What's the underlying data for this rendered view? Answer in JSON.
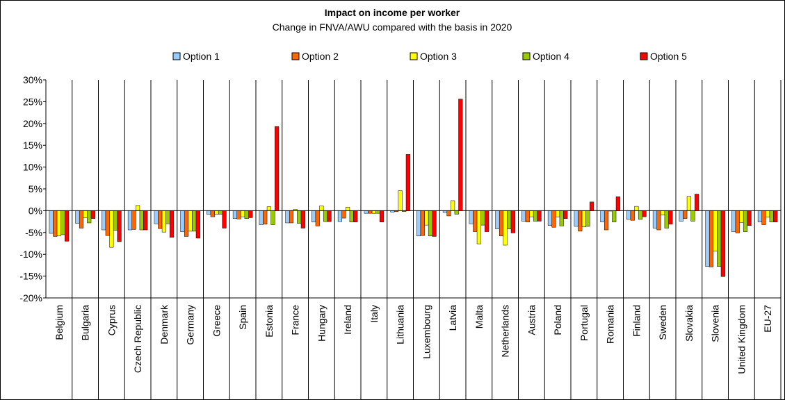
{
  "chart_data": {
    "type": "bar",
    "title": "Impact on income per worker",
    "subtitle": "Change in FNVA/AWU compared with the basis in 2020",
    "xlabel": "",
    "ylabel": "",
    "ylim": [
      -20,
      30
    ],
    "y_ticks": [
      "30%",
      "25%",
      "20%",
      "15%",
      "10%",
      "5%",
      "0%",
      "-5%",
      "-10%",
      "-15%",
      "-20%"
    ],
    "legend_position": "top",
    "grid": "vertical separators between categories",
    "categories": [
      "Belgium",
      "Bulgaria",
      "Cyprus",
      "Czech Republic",
      "Denmark",
      "Germany",
      "Greece",
      "Spain",
      "Estonia",
      "France",
      "Hungary",
      "Ireland",
      "Italy",
      "Lithuania",
      "Luxembourg",
      "Latvia",
      "Malta",
      "Netherlands",
      "Austria",
      "Poland",
      "Portugal",
      "Romania",
      "Finland",
      "Sweden",
      "Slovakia",
      "Slovenia",
      "United Kingdom",
      "EU-27"
    ],
    "series": [
      {
        "name": "Option 1",
        "color": "#99ccff",
        "values": [
          -5.2,
          -2.9,
          -4.4,
          -4.4,
          -3.0,
          -4.8,
          -0.8,
          -1.8,
          -3.2,
          -2.8,
          -2.6,
          -2.5,
          -0.6,
          -0.3,
          -5.8,
          -0.4,
          -3.0,
          -4.2,
          -2.4,
          -3.4,
          -3.6,
          -2.6,
          -2.0,
          -4.0,
          -2.4,
          -12.8,
          -4.8,
          -2.6
        ]
      },
      {
        "name": "Option 2",
        "color": "#ff6600",
        "values": [
          -5.9,
          -4.0,
          -5.7,
          -4.3,
          -4.1,
          -5.9,
          -1.4,
          -1.9,
          -3.1,
          -2.8,
          -3.5,
          -1.7,
          -0.6,
          -0.2,
          -5.7,
          -1.2,
          -4.8,
          -5.8,
          -2.6,
          -3.8,
          -4.7,
          -4.4,
          -2.2,
          -4.4,
          -1.8,
          -12.9,
          -5.1,
          -3.2
        ]
      },
      {
        "name": "Option 3",
        "color": "#ffff00",
        "values": [
          -5.8,
          -1.6,
          -8.4,
          1.2,
          -4.9,
          -4.7,
          -0.8,
          -1.4,
          0.9,
          0.3,
          1.1,
          0.8,
          -0.6,
          4.6,
          -3.3,
          2.3,
          -7.6,
          -7.9,
          -1.4,
          -1.4,
          -3.7,
          -0.1,
          1.0,
          -1.0,
          3.3,
          -9.3,
          -2.7,
          -1.5
        ]
      },
      {
        "name": "Option 4",
        "color": "#99cc00",
        "values": [
          -5.5,
          -2.8,
          -4.5,
          -4.4,
          -3.0,
          -4.7,
          -0.8,
          -1.8,
          -3.2,
          -2.9,
          -2.5,
          -2.6,
          -0.6,
          -0.2,
          -5.8,
          -0.8,
          -3.3,
          -4.2,
          -2.4,
          -3.5,
          -3.6,
          -2.6,
          -2.0,
          -4.0,
          -2.4,
          -12.8,
          -4.8,
          -2.6
        ]
      },
      {
        "name": "Option 5",
        "color": "#ff0000",
        "values": [
          -7.0,
          -1.8,
          -7.1,
          -4.4,
          -6.1,
          -6.3,
          -4.0,
          -1.6,
          19.3,
          -4.0,
          -2.5,
          -2.6,
          -2.6,
          12.9,
          -5.9,
          25.6,
          -4.8,
          -5.1,
          -2.4,
          -1.8,
          2.0,
          3.2,
          -1.4,
          -3.1,
          3.8,
          -15.1,
          -3.4,
          -2.6
        ]
      }
    ]
  }
}
